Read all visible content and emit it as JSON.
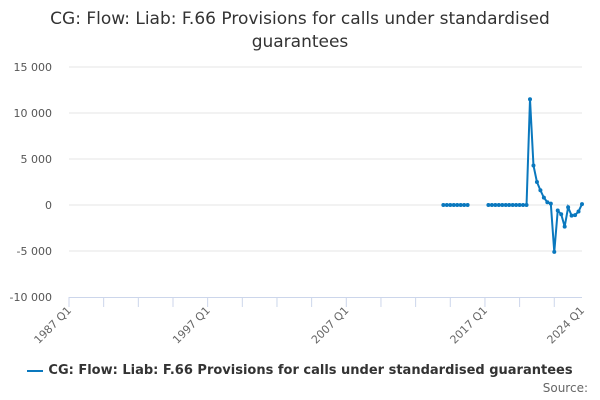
{
  "chart_data": {
    "type": "line",
    "title": "CG: Flow: Liab: F.66 Provisions for calls under standardised guarantees",
    "xlabel": "",
    "ylabel": "",
    "ylim": [
      -10000,
      15000
    ],
    "yticks": [
      15000,
      10000,
      5000,
      0,
      -5000,
      -10000
    ],
    "ytick_labels": [
      "15 000",
      "10 000",
      "5 000",
      "0",
      "-5 000",
      "-10 000"
    ],
    "xlim": [
      "1987 Q1",
      "2024 Q1"
    ],
    "xtick_labels": [
      "1987 Q1",
      "1997 Q1",
      "2007 Q1",
      "2017 Q1",
      "2024 Q1"
    ],
    "grid": true,
    "legend": "bottom",
    "color": "#0a78be",
    "series": [
      {
        "name": "CG: Flow: Liab: F.66 Provisions for calls under standardised guarantees",
        "x": [
          "2014 Q1",
          "2014 Q2",
          "2014 Q3",
          "2014 Q4",
          "2015 Q1",
          "2015 Q2",
          "2015 Q3",
          "2015 Q4",
          "2016 Q1",
          "2016 Q2",
          "2016 Q3",
          "2016 Q4",
          "2017 Q1",
          "2017 Q2",
          "2017 Q3",
          "2017 Q4",
          "2018 Q1",
          "2018 Q2",
          "2018 Q3",
          "2018 Q4",
          "2019 Q1",
          "2019 Q2",
          "2019 Q3",
          "2019 Q4",
          "2020 Q1",
          "2020 Q2",
          "2020 Q3",
          "2020 Q4",
          "2021 Q1",
          "2021 Q2",
          "2021 Q3",
          "2021 Q4",
          "2022 Q1",
          "2022 Q2",
          "2022 Q3",
          "2022 Q4",
          "2023 Q1",
          "2023 Q2",
          "2023 Q3",
          "2023 Q4",
          "2024 Q1"
        ],
        "values": [
          0,
          0,
          0,
          0,
          0,
          0,
          0,
          0,
          null,
          null,
          null,
          null,
          null,
          0,
          0,
          0,
          0,
          0,
          0,
          0,
          0,
          0,
          0,
          0,
          0,
          11500,
          4300,
          2500,
          1600,
          800,
          300,
          150,
          -5100,
          -600,
          -1000,
          -2350,
          -250,
          -1150,
          -1100,
          -700,
          100
        ]
      }
    ]
  },
  "source_label": "Source:"
}
